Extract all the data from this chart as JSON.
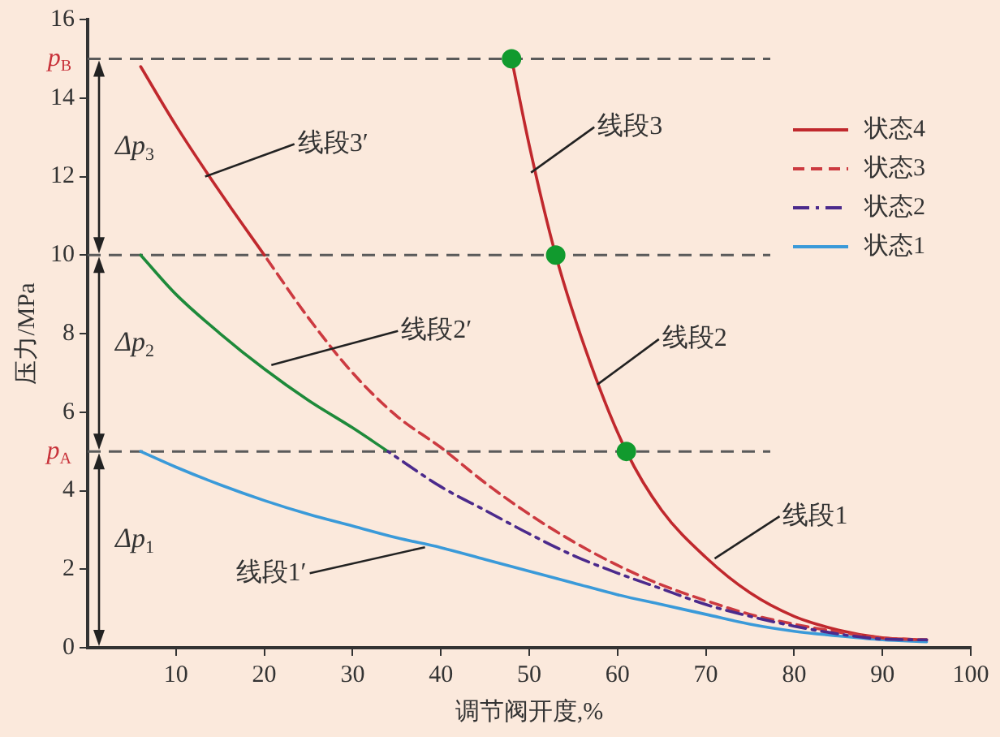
{
  "chart_data": {
    "type": "line",
    "xlabel": "调节阀开度,%",
    "ylabel": "压力/MPa",
    "xlim": [
      0,
      100
    ],
    "xticks": [
      10,
      20,
      30,
      40,
      50,
      60,
      70,
      80,
      90,
      100
    ],
    "ylim": [
      0,
      16
    ],
    "yticks": [
      0,
      2,
      4,
      6,
      8,
      10,
      12,
      14,
      16
    ],
    "grid": false,
    "legend": "top right",
    "marker": "none",
    "series": [
      {
        "name": "状态4",
        "color": "#c0282d",
        "line_style": "solid",
        "x": [
          48,
          50,
          53,
          57,
          61,
          65,
          70,
          75,
          80,
          85,
          90,
          95
        ],
        "values": [
          15,
          12.8,
          10,
          7.2,
          5,
          3.5,
          2.3,
          1.4,
          0.8,
          0.45,
          0.25,
          0.2
        ]
      },
      {
        "name": "状态3",
        "color": "#cc3a40",
        "line_style": "dashed",
        "x": [
          20,
          25,
          30,
          35,
          40,
          45,
          50,
          55,
          60,
          65,
          70,
          75,
          80,
          85,
          90,
          95
        ],
        "values": [
          10,
          8.4,
          7,
          5.9,
          5.1,
          4.2,
          3.4,
          2.7,
          2.1,
          1.6,
          1.2,
          0.85,
          0.6,
          0.4,
          0.25,
          0.2
        ]
      },
      {
        "name": "状态2",
        "color": "#4b2a8c",
        "line_style": "dashdot",
        "x": [
          34,
          40,
          45,
          50,
          55,
          60,
          65,
          70,
          75,
          80,
          85,
          90,
          95
        ],
        "values": [
          5,
          4.1,
          3.5,
          2.9,
          2.35,
          1.9,
          1.5,
          1.1,
          0.8,
          0.55,
          0.35,
          0.22,
          0.2
        ]
      },
      {
        "name": "状态1",
        "color": "#3a9ad9",
        "line_style": "solid",
        "x": [
          6,
          10,
          15,
          20,
          25,
          30,
          35,
          40,
          45,
          50,
          55,
          60,
          65,
          70,
          75,
          80,
          85,
          90,
          95
        ],
        "values": [
          5,
          4.6,
          4.15,
          3.75,
          3.4,
          3.1,
          2.8,
          2.55,
          2.25,
          1.95,
          1.65,
          1.35,
          1.1,
          0.85,
          0.6,
          0.42,
          0.3,
          0.2,
          0.15
        ]
      },
      {
        "color": "#c0282d",
        "line_style": "solid",
        "x": [
          6,
          10,
          15,
          20
        ],
        "values": [
          14.8,
          13.3,
          11.6,
          10
        ]
      },
      {
        "color": "#1e8a3a",
        "line_style": "solid",
        "x": [
          6,
          10,
          15,
          20,
          25,
          30,
          34
        ],
        "values": [
          10,
          9,
          8,
          7.1,
          6.3,
          5.6,
          5
        ]
      },
      {
        "type": "scatter",
        "color": "#119a2e",
        "marker": "circle",
        "x": [
          48,
          53,
          61
        ],
        "values": [
          15,
          10,
          5
        ]
      }
    ],
    "ref_lines": [
      {
        "axis": "y",
        "value": 15,
        "label": "p$_{B}$",
        "color": "#5a5a5a",
        "line_style": "dashed"
      },
      {
        "axis": "y",
        "value": 10,
        "color": "#5a5a5a",
        "line_style": "dashed"
      },
      {
        "axis": "y",
        "value": 5,
        "label": "p$_{A}$",
        "color": "#5a5a5a",
        "line_style": "dashed"
      }
    ],
    "annotations": [
      "Δp$_{3}$",
      "Δp$_{2}$",
      "Δp$_{1}$",
      {
        "text": "线段3′",
        "x": 13.3,
        "y": 12
      },
      {
        "text": "线段2′",
        "x": 20.8,
        "y": 7.2
      },
      {
        "text": "线段1′",
        "x": 38.2,
        "y": 2.56
      },
      {
        "text": "线段3",
        "x": 50.2,
        "y": 12.1
      },
      {
        "text": "线段2",
        "x": 57.7,
        "y": 6.7
      },
      {
        "text": "线段1",
        "x": 71,
        "y": 2.27
      }
    ]
  }
}
